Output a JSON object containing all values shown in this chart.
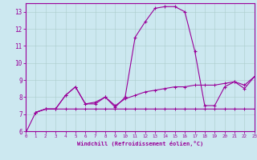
{
  "background_color": "#cce8f0",
  "line_color": "#990099",
  "grid_color": "#aacccc",
  "xlabel": "Windchill (Refroidissement éolien,°C)",
  "xlim": [
    0,
    23
  ],
  "ylim": [
    6,
    13.5
  ],
  "yticks": [
    6,
    7,
    8,
    9,
    10,
    11,
    12,
    13
  ],
  "xticks": [
    0,
    1,
    2,
    3,
    4,
    5,
    6,
    7,
    8,
    9,
    10,
    11,
    12,
    13,
    14,
    15,
    16,
    17,
    18,
    19,
    20,
    21,
    22,
    23
  ],
  "line1_x": [
    0,
    1,
    2,
    3,
    4,
    5,
    6,
    7,
    8,
    9,
    10,
    11,
    12,
    13,
    14,
    15,
    16,
    17,
    18,
    19,
    20,
    21,
    22,
    23
  ],
  "line1_y": [
    5.9,
    7.1,
    7.3,
    7.3,
    8.1,
    8.6,
    7.6,
    7.6,
    8.0,
    7.4,
    8.0,
    11.5,
    12.4,
    13.2,
    13.3,
    13.3,
    13.0,
    10.7,
    7.5,
    7.5,
    8.6,
    8.9,
    8.5,
    9.2
  ],
  "line2_x": [
    1,
    2,
    3,
    4,
    5,
    6,
    7,
    8,
    9,
    10,
    11,
    12,
    13,
    14,
    15,
    16,
    17,
    18,
    19,
    20,
    21,
    22,
    23
  ],
  "line2_y": [
    7.1,
    7.3,
    7.3,
    7.3,
    7.3,
    7.3,
    7.3,
    7.3,
    7.3,
    7.3,
    7.3,
    7.3,
    7.3,
    7.3,
    7.3,
    7.3,
    7.3,
    7.3,
    7.3,
    7.3,
    7.3,
    7.3,
    7.3
  ],
  "line3_x": [
    1,
    2,
    3,
    4,
    5,
    6,
    7,
    8,
    9,
    10,
    11,
    12,
    13,
    14,
    15,
    16,
    17,
    18,
    19,
    20,
    21,
    22,
    23
  ],
  "line3_y": [
    7.1,
    7.3,
    7.3,
    8.1,
    8.6,
    7.6,
    7.7,
    8.0,
    7.5,
    7.9,
    8.1,
    8.3,
    8.4,
    8.5,
    8.6,
    8.6,
    8.7,
    8.7,
    8.7,
    8.8,
    8.9,
    8.7,
    9.2
  ]
}
